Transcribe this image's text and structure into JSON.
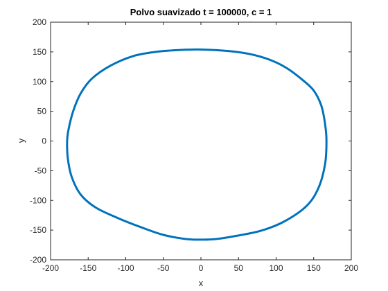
{
  "chart_data": {
    "type": "line",
    "title": "Polvo suavizado t = 100000, c = 1",
    "xlabel": "x",
    "ylabel": "y",
    "xlim": [
      -200,
      200
    ],
    "ylim": [
      -200,
      200
    ],
    "xticks": [
      -200,
      -150,
      -100,
      -50,
      0,
      50,
      100,
      150,
      200
    ],
    "yticks": [
      -200,
      -150,
      -100,
      -50,
      0,
      50,
      100,
      150,
      200
    ],
    "grid": false,
    "color": "#0072BD",
    "series": [
      {
        "name": "curve",
        "x": [
          167,
          165,
          160,
          150,
          135,
          115,
          95,
          70,
          40,
          0,
          -30,
          -60,
          -90,
          -120,
          -145,
          -160,
          -170,
          -176,
          -178,
          -177,
          -172,
          -160,
          -140,
          -110,
          -80,
          -50,
          -20,
          0,
          20,
          50,
          80,
          110,
          140,
          156,
          165,
          167
        ],
        "y": [
          0,
          30,
          60,
          85,
          103,
          122,
          135,
          145,
          151,
          154,
          153,
          150,
          143,
          127,
          105,
          80,
          50,
          20,
          0,
          -30,
          -60,
          -90,
          -112,
          -130,
          -145,
          -158,
          -165,
          -166,
          -165,
          -159,
          -151,
          -136,
          -110,
          -80,
          -40,
          0
        ]
      }
    ]
  }
}
